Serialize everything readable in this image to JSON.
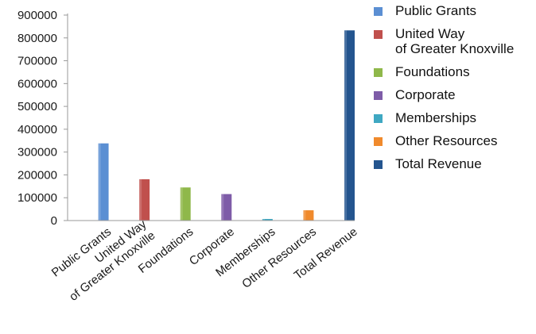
{
  "chart_data": {
    "type": "bar",
    "title": "",
    "xlabel": "",
    "ylabel": "",
    "ylim": [
      0,
      900000
    ],
    "yticks": [
      0,
      100000,
      200000,
      300000,
      400000,
      500000,
      600000,
      700000,
      800000,
      900000
    ],
    "categories": [
      "Public Grants",
      "United Way\nof Greater Knoxville",
      "Foundations",
      "Corporate",
      "Memberships",
      "Other Resources",
      "Total Revenue"
    ],
    "values": [
      338000,
      181000,
      145000,
      116000,
      7000,
      45000,
      833000
    ],
    "colors": [
      "#5b8fd3",
      "#c0504d",
      "#8fb84a",
      "#7e5ca8",
      "#3fa8c2",
      "#f08a2c",
      "#24558f"
    ],
    "grid": false,
    "legend_position": "right"
  },
  "legend": {
    "items": [
      {
        "label": "Public Grants",
        "color": "#5b8fd3"
      },
      {
        "label": "United Way\nof Greater Knoxville",
        "color": "#c0504d"
      },
      {
        "label": "Foundations",
        "color": "#8fb84a"
      },
      {
        "label": "Corporate",
        "color": "#7e5ca8"
      },
      {
        "label": "Memberships",
        "color": "#3fa8c2"
      },
      {
        "label": "Other Resources",
        "color": "#f08a2c"
      },
      {
        "label": "Total Revenue",
        "color": "#24558f"
      }
    ]
  }
}
